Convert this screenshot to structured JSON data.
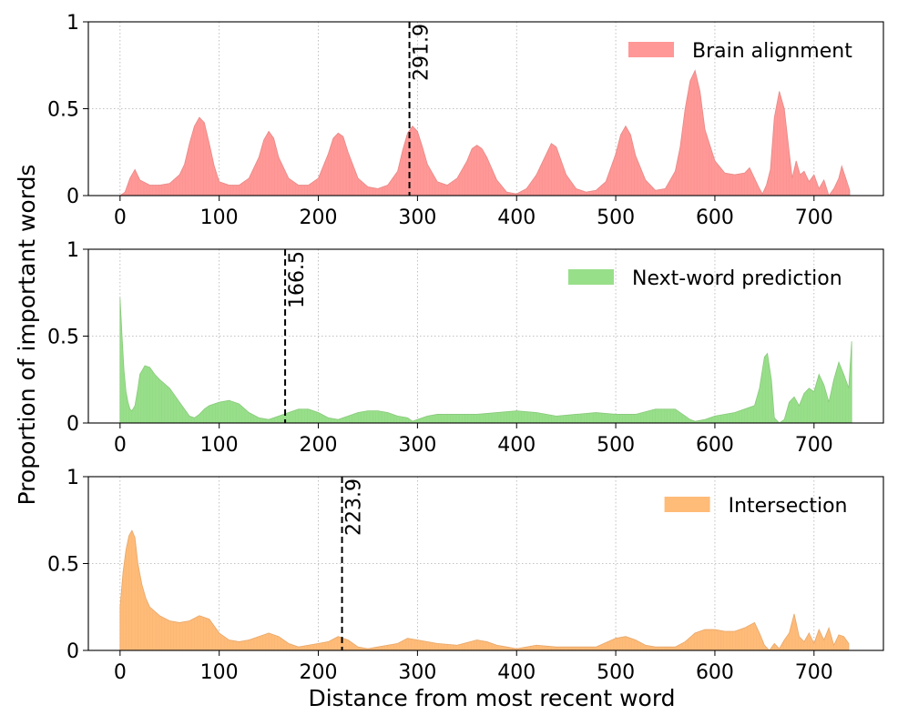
{
  "figure": {
    "ylabel": "Proportion of important words",
    "xlabel": "Distance from most recent word"
  },
  "chart_data": [
    {
      "type": "area",
      "title": "",
      "legend": "Brain alignment",
      "legend_position": "top-right",
      "color": "#ff9896",
      "xlim": [
        -32,
        770
      ],
      "ylim": [
        0,
        1.0
      ],
      "xticks": [
        0,
        100,
        200,
        300,
        400,
        500,
        600,
        700
      ],
      "yticks": [
        0.0,
        0.5,
        1.0
      ],
      "grid": true,
      "marker": {
        "x": 291.9,
        "label": "291.9"
      },
      "series": [
        {
          "name": "Brain alignment",
          "x": [
            0,
            5,
            10,
            15,
            20,
            30,
            40,
            50,
            60,
            65,
            70,
            75,
            80,
            85,
            90,
            95,
            100,
            110,
            120,
            130,
            140,
            145,
            150,
            155,
            160,
            170,
            180,
            190,
            200,
            210,
            215,
            220,
            225,
            230,
            240,
            250,
            260,
            270,
            280,
            285,
            290,
            295,
            300,
            305,
            310,
            320,
            330,
            340,
            350,
            355,
            360,
            365,
            370,
            380,
            390,
            400,
            410,
            420,
            430,
            435,
            440,
            445,
            450,
            460,
            470,
            480,
            490,
            500,
            505,
            510,
            515,
            520,
            530,
            540,
            550,
            560,
            565,
            570,
            575,
            580,
            585,
            590,
            600,
            610,
            620,
            630,
            635,
            640,
            645,
            648,
            652,
            656,
            660,
            665,
            670,
            675,
            678,
            682,
            686,
            690,
            695,
            700,
            705,
            710,
            715,
            720,
            725,
            728,
            732,
            736
          ],
          "y": [
            0.0,
            0.02,
            0.1,
            0.15,
            0.09,
            0.06,
            0.06,
            0.07,
            0.12,
            0.18,
            0.3,
            0.4,
            0.45,
            0.42,
            0.3,
            0.17,
            0.08,
            0.06,
            0.06,
            0.1,
            0.22,
            0.32,
            0.37,
            0.33,
            0.22,
            0.1,
            0.06,
            0.06,
            0.1,
            0.24,
            0.33,
            0.36,
            0.34,
            0.25,
            0.1,
            0.05,
            0.04,
            0.06,
            0.14,
            0.26,
            0.36,
            0.4,
            0.37,
            0.28,
            0.18,
            0.08,
            0.06,
            0.1,
            0.2,
            0.27,
            0.29,
            0.27,
            0.22,
            0.09,
            0.02,
            0.01,
            0.04,
            0.12,
            0.24,
            0.3,
            0.28,
            0.2,
            0.12,
            0.04,
            0.02,
            0.03,
            0.08,
            0.24,
            0.35,
            0.4,
            0.35,
            0.23,
            0.09,
            0.03,
            0.04,
            0.14,
            0.28,
            0.5,
            0.66,
            0.72,
            0.6,
            0.38,
            0.2,
            0.13,
            0.12,
            0.13,
            0.16,
            0.1,
            0.04,
            0.01,
            0.06,
            0.15,
            0.45,
            0.6,
            0.5,
            0.25,
            0.1,
            0.2,
            0.12,
            0.14,
            0.08,
            0.12,
            0.04,
            0.09,
            0.0,
            0.04,
            0.1,
            0.17,
            0.1,
            0.03
          ]
        }
      ]
    },
    {
      "type": "area",
      "title": "",
      "legend": "Next-word prediction",
      "legend_position": "top-right",
      "color": "#98df8a",
      "xlim": [
        -32,
        770
      ],
      "ylim": [
        0,
        1.0
      ],
      "xticks": [
        0,
        100,
        200,
        300,
        400,
        500,
        600,
        700
      ],
      "yticks": [
        0.0,
        0.5,
        1.0
      ],
      "grid": true,
      "marker": {
        "x": 166.5,
        "label": "166.5"
      },
      "series": [
        {
          "name": "Next-word prediction",
          "x": [
            0,
            2,
            4,
            6,
            8,
            10,
            12,
            15,
            18,
            20,
            25,
            30,
            35,
            40,
            50,
            60,
            70,
            75,
            80,
            85,
            90,
            100,
            110,
            120,
            130,
            140,
            150,
            160,
            170,
            180,
            190,
            200,
            210,
            220,
            230,
            240,
            250,
            260,
            270,
            280,
            290,
            295,
            300,
            310,
            320,
            340,
            360,
            380,
            400,
            420,
            440,
            460,
            480,
            500,
            520,
            540,
            560,
            570,
            575,
            580,
            590,
            600,
            620,
            640,
            645,
            650,
            653,
            657,
            660,
            665,
            670,
            675,
            680,
            685,
            690,
            695,
            700,
            705,
            710,
            715,
            720,
            725,
            730,
            735,
            738
          ],
          "y": [
            0.72,
            0.5,
            0.3,
            0.18,
            0.12,
            0.08,
            0.07,
            0.1,
            0.2,
            0.28,
            0.33,
            0.32,
            0.28,
            0.25,
            0.2,
            0.12,
            0.04,
            0.03,
            0.05,
            0.08,
            0.1,
            0.12,
            0.13,
            0.11,
            0.06,
            0.03,
            0.02,
            0.04,
            0.06,
            0.08,
            0.08,
            0.06,
            0.03,
            0.02,
            0.04,
            0.06,
            0.07,
            0.07,
            0.06,
            0.04,
            0.03,
            0.01,
            0.02,
            0.04,
            0.05,
            0.05,
            0.05,
            0.06,
            0.07,
            0.06,
            0.04,
            0.05,
            0.06,
            0.05,
            0.05,
            0.08,
            0.08,
            0.04,
            0.02,
            0.01,
            0.02,
            0.04,
            0.06,
            0.1,
            0.2,
            0.38,
            0.4,
            0.25,
            0.03,
            0.0,
            0.02,
            0.12,
            0.15,
            0.1,
            0.17,
            0.2,
            0.18,
            0.28,
            0.22,
            0.12,
            0.25,
            0.35,
            0.28,
            0.2,
            0.47
          ]
        }
      ]
    },
    {
      "type": "area",
      "title": "",
      "legend": "Intersection",
      "legend_position": "top-right",
      "color": "#ffbb78",
      "xlim": [
        -32,
        770
      ],
      "ylim": [
        0,
        1.0
      ],
      "xticks": [
        0,
        100,
        200,
        300,
        400,
        500,
        600,
        700
      ],
      "yticks": [
        0.0,
        0.5,
        1.0
      ],
      "grid": true,
      "marker": {
        "x": 223.9,
        "label": "223.9"
      },
      "series": [
        {
          "name": "Intersection",
          "x": [
            0,
            3,
            6,
            9,
            12,
            15,
            18,
            22,
            26,
            30,
            40,
            50,
            60,
            70,
            80,
            90,
            100,
            110,
            120,
            130,
            140,
            150,
            160,
            170,
            180,
            190,
            200,
            210,
            220,
            230,
            240,
            250,
            260,
            270,
            280,
            290,
            300,
            320,
            340,
            360,
            370,
            380,
            390,
            400,
            420,
            440,
            460,
            480,
            500,
            510,
            520,
            530,
            540,
            560,
            570,
            580,
            590,
            600,
            610,
            620,
            630,
            640,
            645,
            650,
            655,
            660,
            665,
            670,
            675,
            680,
            685,
            690,
            695,
            700,
            705,
            710,
            715,
            720,
            725,
            730,
            735
          ],
          "y": [
            0.25,
            0.45,
            0.58,
            0.66,
            0.69,
            0.65,
            0.5,
            0.38,
            0.3,
            0.25,
            0.2,
            0.17,
            0.16,
            0.17,
            0.2,
            0.18,
            0.1,
            0.06,
            0.05,
            0.06,
            0.08,
            0.1,
            0.08,
            0.04,
            0.02,
            0.03,
            0.04,
            0.05,
            0.08,
            0.06,
            0.02,
            0.01,
            0.02,
            0.03,
            0.04,
            0.07,
            0.06,
            0.04,
            0.03,
            0.06,
            0.05,
            0.03,
            0.02,
            0.01,
            0.03,
            0.02,
            0.02,
            0.02,
            0.07,
            0.08,
            0.06,
            0.03,
            0.02,
            0.02,
            0.05,
            0.1,
            0.12,
            0.12,
            0.11,
            0.11,
            0.13,
            0.16,
            0.1,
            0.03,
            0.0,
            0.04,
            0.01,
            0.06,
            0.1,
            0.21,
            0.08,
            0.05,
            0.1,
            0.04,
            0.12,
            0.06,
            0.13,
            0.03,
            0.09,
            0.08,
            0.04
          ]
        }
      ]
    }
  ]
}
